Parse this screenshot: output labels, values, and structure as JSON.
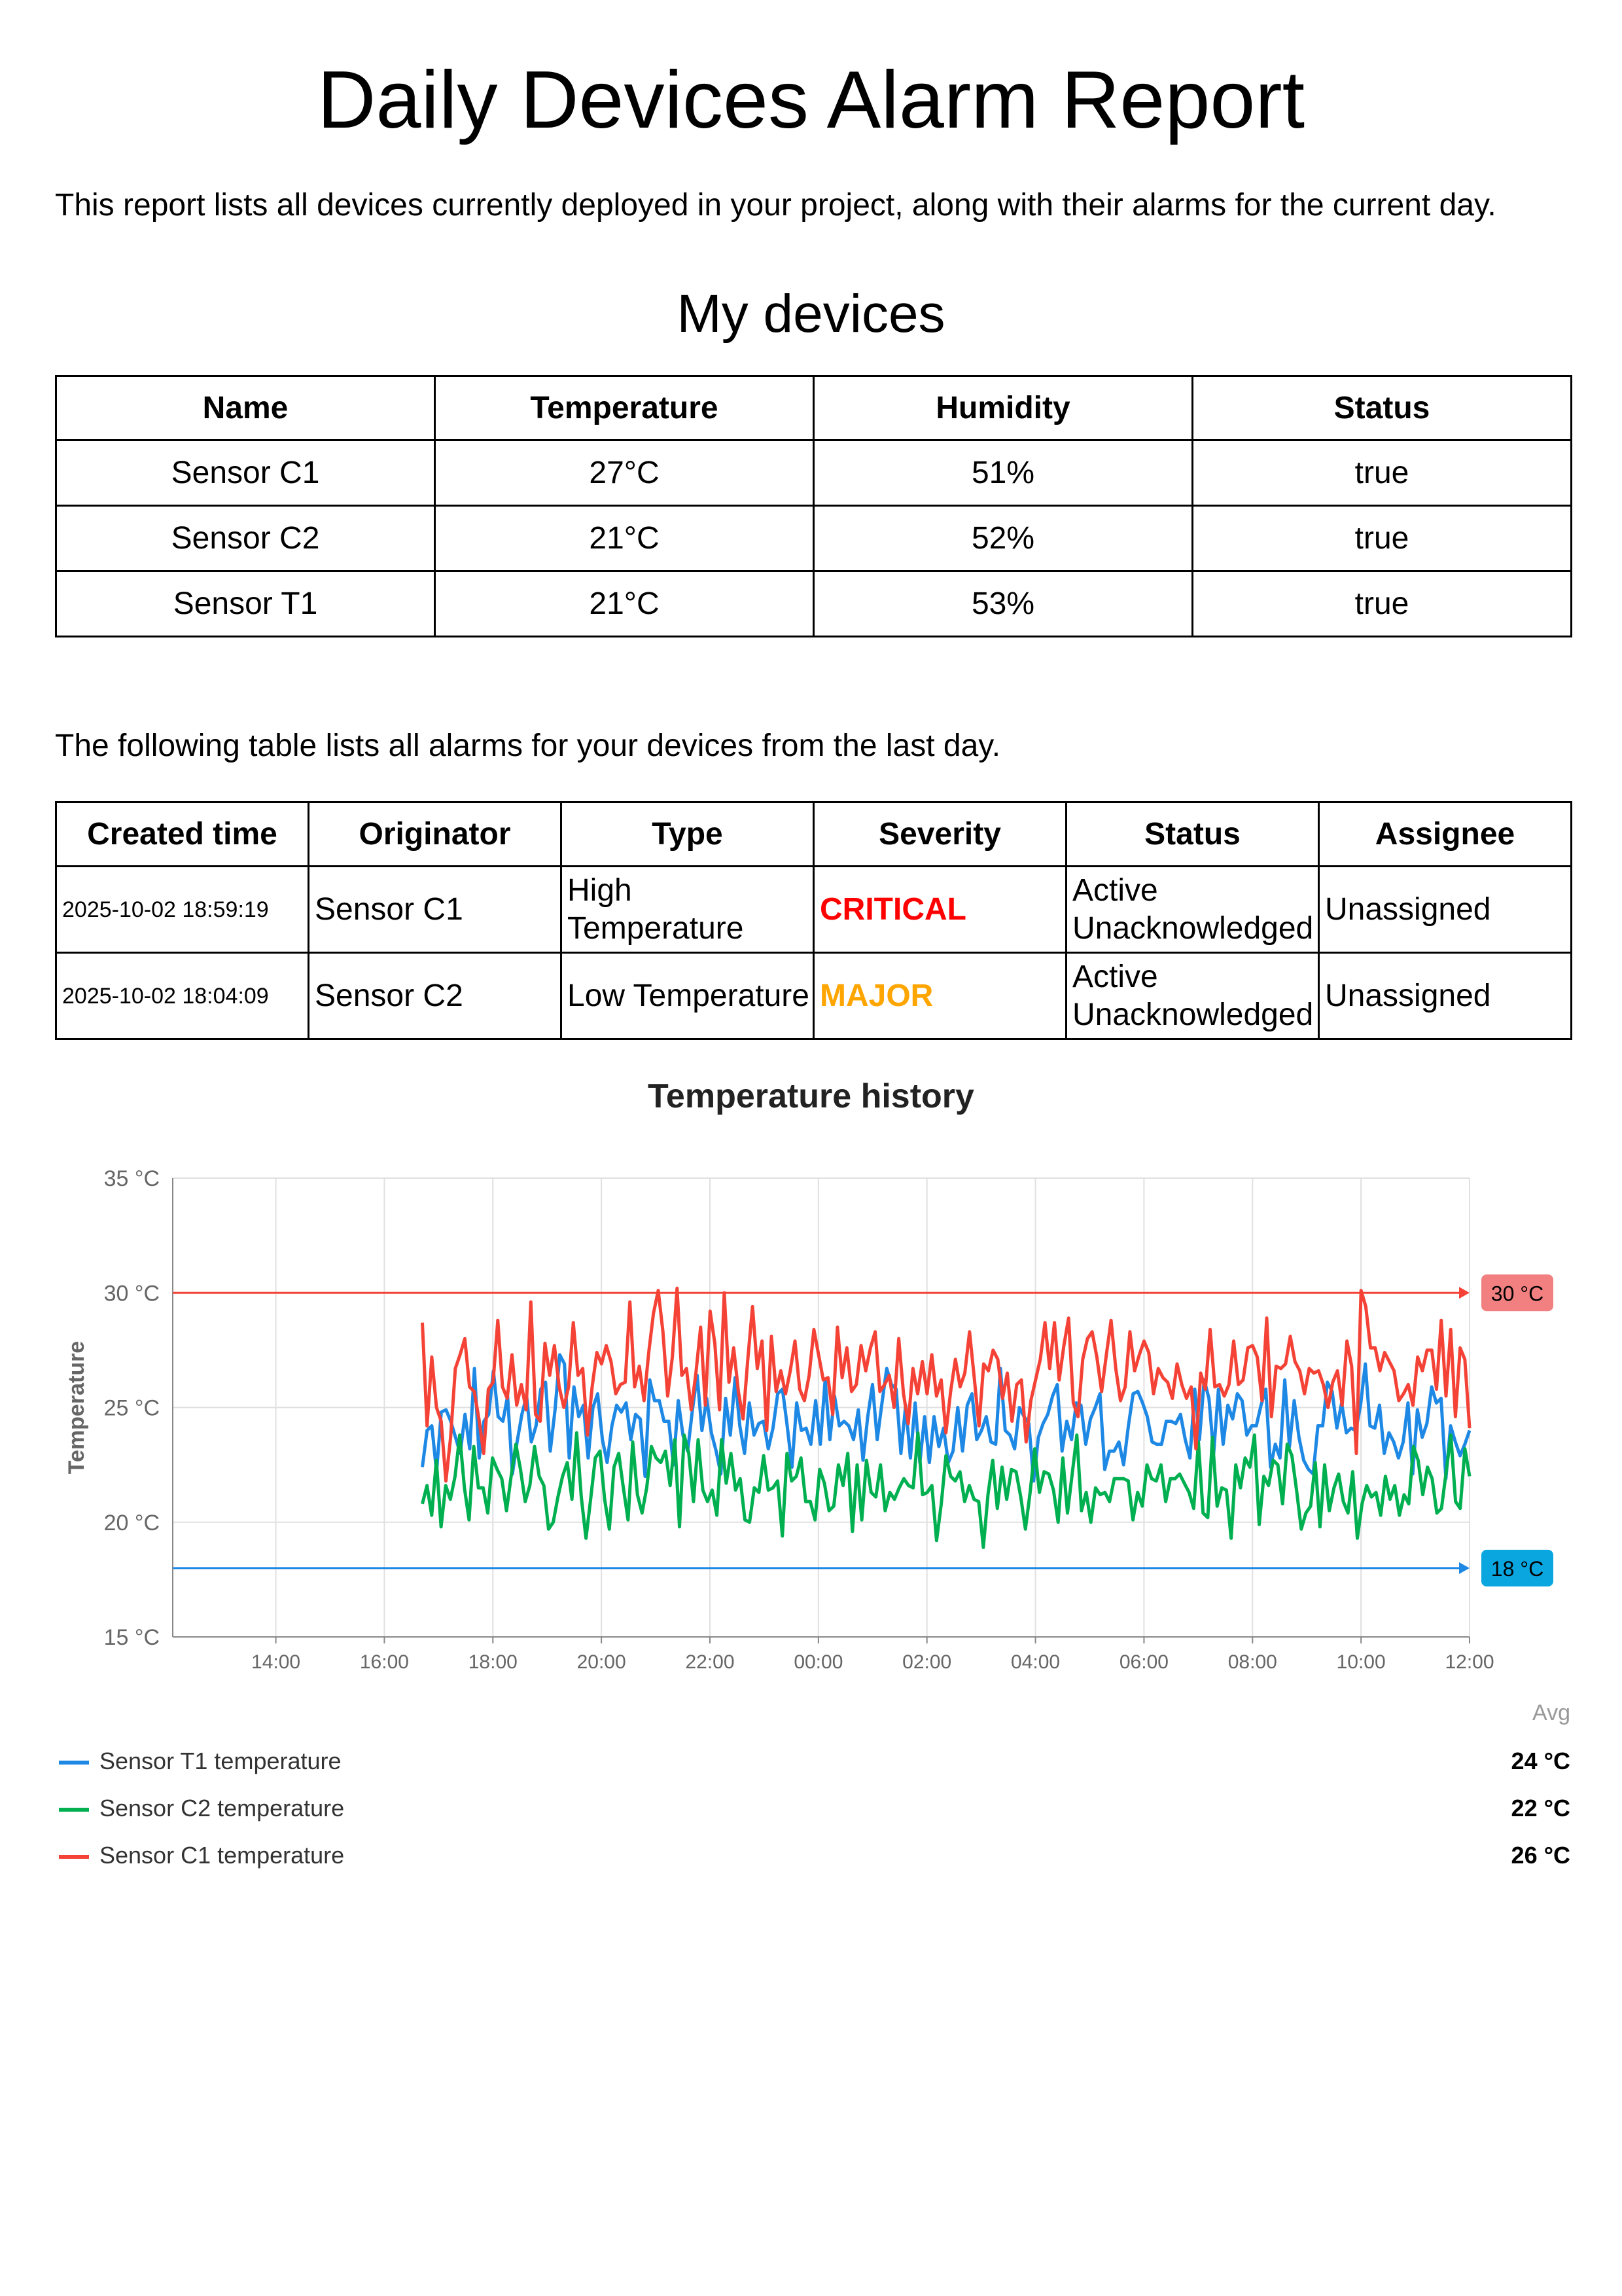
{
  "title": "Daily Devices Alarm Report",
  "intro": "This report lists all devices currently deployed in your project, along with their alarms for the current day.",
  "devices_heading": "My devices",
  "devices_table": {
    "headers": [
      "Name",
      "Temperature",
      "Humidity",
      "Status"
    ],
    "rows": [
      [
        "Sensor C1",
        "27°C",
        "51%",
        "true"
      ],
      [
        "Sensor C2",
        "21°C",
        "52%",
        "true"
      ],
      [
        "Sensor T1",
        "21°C",
        "53%",
        "true"
      ]
    ]
  },
  "alarms_intro": "The following table lists all alarms for your devices from the last day.",
  "alarms_table": {
    "headers": [
      "Created time",
      "Originator",
      "Type",
      "Severity",
      "Status",
      "Assignee"
    ],
    "rows": [
      {
        "time": "2025-10-02 18:59:19",
        "originator": "Sensor C1",
        "type": "High Temperature",
        "severity": "CRITICAL",
        "severity_color": "#ff0000",
        "status": "Active Unacknowledged",
        "assignee": "Unassigned"
      },
      {
        "time": "2025-10-02 18:04:09",
        "originator": "Sensor C2",
        "type": "Low Temperature",
        "severity": "MAJOR",
        "severity_color": "#ffa500",
        "status": "Active Unacknowledged",
        "assignee": "Unassigned"
      }
    ]
  },
  "chart_title": "Temperature history",
  "chart_data": {
    "type": "line",
    "ylabel": "Temperature",
    "ylim": [
      15,
      35
    ],
    "y_ticks": [
      "15 °C",
      "20 °C",
      "25 °C",
      "30 °C",
      "35 °C"
    ],
    "x_ticks": [
      "14:00",
      "16:00",
      "18:00",
      "20:00",
      "22:00",
      "00:00",
      "02:00",
      "04:00",
      "06:00",
      "08:00",
      "10:00",
      "12:00"
    ],
    "x_range_hours": [
      12.1,
      36.0
    ],
    "series_start_hour": 16.7,
    "grid": true,
    "thresholds": [
      {
        "label": "30 °C",
        "value": 30,
        "color": "#f44336",
        "label_bg": "#f28080"
      },
      {
        "label": "18 °C",
        "value": 18,
        "color": "#1e88e5",
        "label_bg": "#0aa6e0"
      }
    ],
    "series": [
      {
        "name": "Sensor T1 temperature",
        "color": "#1e88e5",
        "avg": "24 °C",
        "values": [
          22.4,
          24.0,
          24.2,
          22.2,
          24.8,
          24.9,
          24.4,
          23.7,
          23.0,
          24.7,
          23.2,
          26.7,
          22.8,
          24.4,
          24.7,
          26.6,
          24.6,
          24.4,
          25.5,
          22.1,
          23.5,
          24.7,
          25.5,
          23.5,
          24.2,
          25.8,
          26.1,
          23.1,
          24.9,
          27.3,
          26.9,
          22.8,
          25.9,
          24.6,
          25.1,
          22.8,
          25.0,
          25.6,
          23.6,
          22.6,
          24.2,
          25.1,
          24.8,
          25.2,
          23.6,
          24.7,
          24.5,
          22.0,
          26.2,
          25.3,
          25.3,
          24.4,
          24.4,
          22.5,
          25.3,
          23.8,
          23.1,
          24.9,
          26.4,
          24.0,
          25.4,
          23.9,
          23.1,
          22.1,
          25.4,
          23.8,
          26.3,
          24.2,
          23.0,
          25.2,
          23.8,
          24.3,
          24.4,
          23.2,
          24.1,
          25.6,
          25.8,
          24.2,
          22.4,
          25.2,
          24.0,
          24.1,
          23.4,
          25.3,
          23.4,
          26.2,
          23.6,
          25.5,
          24.2,
          24.4,
          24.2,
          23.6,
          24.9,
          22.7,
          24.6,
          26.0,
          23.6,
          25.2,
          26.7,
          26.0,
          25.8,
          23.0,
          25.1,
          22.8,
          25.2,
          22.6,
          24.6,
          22.6,
          24.6,
          23.3,
          24.1,
          22.6,
          23.1,
          25.0,
          23.1,
          25.1,
          25.6,
          23.6,
          24.0,
          24.6,
          23.5,
          23.4,
          26.7,
          24.0,
          23.8,
          23.2,
          25.0,
          24.6,
          24.3,
          21.8,
          23.7,
          24.3,
          24.7,
          25.5,
          26.0,
          23.1,
          24.4,
          23.6,
          25.2,
          25.1,
          23.4,
          24.5,
          25.0,
          25.6,
          22.3,
          23.1,
          23.1,
          23.5,
          22.5,
          24.2,
          25.6,
          25.7,
          25.2,
          24.6,
          23.5,
          23.4,
          23.4,
          24.4,
          24.4,
          24.3,
          24.7,
          23.6,
          22.8,
          25.8,
          23.6,
          26.2,
          25.4,
          23.0,
          25.8,
          23.4,
          25.1,
          24.5,
          25.6,
          25.3,
          23.8,
          24.2,
          24.2,
          25.1,
          25.8,
          22.4,
          23.4,
          22.8,
          26.2,
          23.3,
          25.3,
          23.7,
          22.7,
          22.3,
          22.1,
          24.2,
          24.2,
          26.1,
          25.7,
          24.1,
          25.2,
          23.9,
          24.1,
          24.0,
          25.1,
          26.9,
          24.2,
          24.1,
          25.1,
          23.0,
          23.9,
          23.5,
          22.8,
          23.5,
          25.2,
          22.1,
          24.9,
          23.7,
          24.3,
          25.9,
          25.2,
          25.4,
          21.9,
          24.2,
          23.5,
          22.9,
          23.4,
          24.0
        ]
      },
      {
        "name": "Sensor C2 temperature",
        "color": "#00b050",
        "avg": "22 °C",
        "values": [
          20.8,
          21.6,
          20.3,
          22.7,
          19.8,
          21.6,
          21.0,
          22.0,
          23.8,
          21.5,
          20.1,
          23.3,
          21.5,
          21.5,
          20.4,
          22.8,
          22.3,
          21.9,
          20.5,
          22.0,
          23.4,
          22.3,
          20.9,
          21.6,
          23.3,
          22.0,
          21.6,
          19.7,
          20.0,
          21.1,
          22.0,
          22.6,
          21.0,
          23.9,
          21.1,
          19.3,
          21.0,
          22.8,
          23.1,
          21.0,
          19.7,
          22.4,
          23.0,
          21.5,
          20.1,
          23.5,
          21.2,
          20.4,
          21.5,
          23.3,
          22.8,
          22.6,
          23.1,
          21.6,
          23.6,
          19.8,
          23.8,
          23.0,
          20.9,
          23.6,
          21.4,
          20.9,
          21.4,
          20.3,
          23.6,
          21.7,
          23.0,
          21.4,
          21.9,
          20.1,
          20.0,
          21.5,
          21.3,
          22.9,
          21.4,
          21.5,
          21.8,
          19.4,
          23.0,
          21.8,
          22.0,
          22.8,
          20.9,
          20.9,
          20.1,
          22.3,
          21.7,
          20.5,
          20.7,
          22.5,
          21.6,
          23.0,
          19.6,
          22.5,
          20.1,
          22.7,
          21.3,
          21.1,
          22.5,
          20.5,
          21.3,
          21.0,
          21.5,
          21.9,
          21.6,
          21.5,
          23.9,
          21.2,
          21.3,
          21.6,
          19.2,
          20.8,
          22.9,
          22.0,
          21.8,
          22.2,
          20.9,
          21.6,
          21.0,
          20.9,
          18.9,
          21.2,
          22.7,
          20.6,
          22.4,
          21.0,
          22.3,
          22.2,
          21.1,
          19.7,
          21.3,
          23.2,
          21.3,
          22.2,
          22.1,
          21.4,
          20.0,
          22.8,
          20.4,
          22.1,
          23.8,
          20.5,
          21.3,
          20.0,
          21.5,
          21.2,
          21.3,
          20.9,
          21.9,
          21.9,
          21.9,
          21.8,
          20.1,
          21.3,
          20.7,
          22.5,
          21.9,
          21.8,
          22.5,
          20.9,
          21.9,
          21.9,
          22.1,
          21.7,
          21.3,
          20.6,
          23.5,
          20.4,
          20.2,
          23.7,
          20.7,
          21.5,
          21.4,
          19.3,
          22.5,
          21.5,
          22.8,
          22.4,
          23.8,
          19.9,
          22.0,
          21.6,
          22.7,
          22.5,
          20.8,
          23.4,
          22.9,
          21.4,
          19.7,
          20.4,
          20.7,
          22.6,
          19.8,
          22.5,
          20.5,
          21.5,
          22.1,
          20.9,
          20.4,
          22.2,
          19.3,
          20.8,
          21.6,
          21.1,
          21.3,
          20.3,
          22.0,
          21.0,
          21.6,
          20.3,
          21.2,
          20.8,
          23.3,
          22.7,
          21.2,
          22.4,
          21.9,
          20.4,
          20.6,
          22.2,
          23.8,
          20.9,
          20.6,
          23.2,
          22.0
        ]
      },
      {
        "name": "Sensor C1 temperature",
        "color": "#f44336",
        "avg": "26 °C",
        "values": [
          28.7,
          24.2,
          27.2,
          25.0,
          24.4,
          21.8,
          23.7,
          26.7,
          27.3,
          28.0,
          25.9,
          25.7,
          24.5,
          23.0,
          25.8,
          26.1,
          28.8,
          25.9,
          25.4,
          27.3,
          25.1,
          26.0,
          24.9,
          29.6,
          24.7,
          24.4,
          27.8,
          26.4,
          27.7,
          25.9,
          25.0,
          25.9,
          28.7,
          26.4,
          26.7,
          23.8,
          25.9,
          27.4,
          26.9,
          27.7,
          27.0,
          25.6,
          26.0,
          26.1,
          29.6,
          25.9,
          26.8,
          25.3,
          27.4,
          29.1,
          30.1,
          28.3,
          25.5,
          27.2,
          30.2,
          26.4,
          26.7,
          24.9,
          26.5,
          28.5,
          25.1,
          29.2,
          27.8,
          24.9,
          30.0,
          26.1,
          27.6,
          25.7,
          24.5,
          27.1,
          29.4,
          26.7,
          27.9,
          24.0,
          28.1,
          25.7,
          26.6,
          25.6,
          26.6,
          27.9,
          25.8,
          25.3,
          26.4,
          28.4,
          27.3,
          26.2,
          26.3,
          24.7,
          28.5,
          26.3,
          27.6,
          25.7,
          26.0,
          27.7,
          26.6,
          27.6,
          28.3,
          25.7,
          26.0,
          26.4,
          25.0,
          28.0,
          25.6,
          24.3,
          26.7,
          25.6,
          27.0,
          25.6,
          27.3,
          25.5,
          26.2,
          23.9,
          25.7,
          27.1,
          25.9,
          26.5,
          28.3,
          26.3,
          24.2,
          26.9,
          26.6,
          27.5,
          27.1,
          25.4,
          26.5,
          24.4,
          26.0,
          26.2,
          23.5,
          25.3,
          26.2,
          27.1,
          28.7,
          26.7,
          28.7,
          26.2,
          27.7,
          28.9,
          25.2,
          24.6,
          27.1,
          28.0,
          28.3,
          27.2,
          25.7,
          27.3,
          28.8,
          26.7,
          25.3,
          25.9,
          28.3,
          26.6,
          27.3,
          27.9,
          27.4,
          25.6,
          26.7,
          26.3,
          26.1,
          25.4,
          26.9,
          26.0,
          25.4,
          25.9,
          23.2,
          26.5,
          25.8,
          28.4,
          25.9,
          26.0,
          25.5,
          26.0,
          27.9,
          26.0,
          26.2,
          27.6,
          27.7,
          27.2,
          25.3,
          28.9,
          24.6,
          26.8,
          26.7,
          26.9,
          28.1,
          27.0,
          26.6,
          25.6,
          26.7,
          26.5,
          26.6,
          26.0,
          25.0,
          26.1,
          26.6,
          25.1,
          27.9,
          26.8,
          23.0,
          30.1,
          29.4,
          27.6,
          27.6,
          26.6,
          27.4,
          27.0,
          26.6,
          25.3,
          25.6,
          26.0,
          25.1,
          27.2,
          26.6,
          27.5,
          27.5,
          25.8,
          28.8,
          25.5,
          28.4,
          24.6,
          27.6,
          27.1,
          24.1
        ]
      }
    ]
  },
  "avg_header": "Avg"
}
